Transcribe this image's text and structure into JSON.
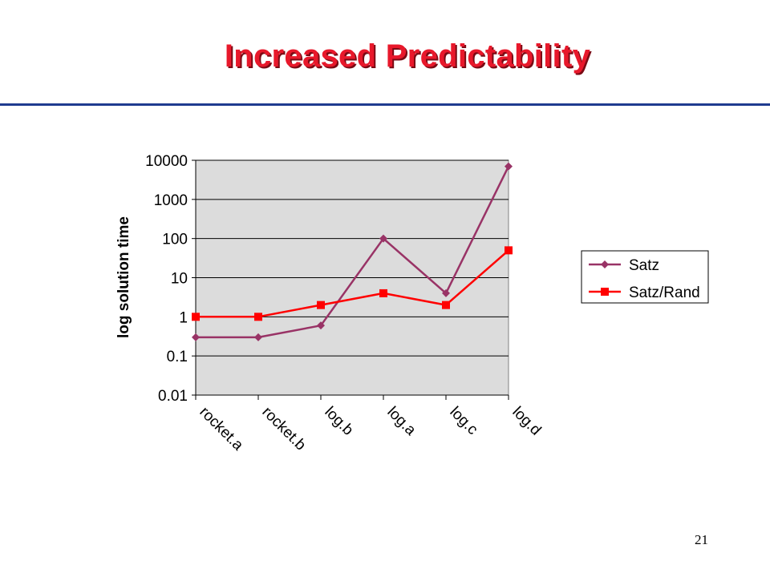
{
  "slide": {
    "title": "Increased Predictability",
    "page_number": "21"
  },
  "colors": {
    "title": "#e8182b",
    "rule": "#1f3b8f",
    "plot_background": "#dcdcdc",
    "satz": "#993366",
    "satz_rand": "#ff0000"
  },
  "chart_data": {
    "type": "line",
    "title": "",
    "xlabel": "",
    "ylabel": "log solution time",
    "y_scale": "log",
    "ylim": [
      0.01,
      10000
    ],
    "y_ticks": [
      {
        "value": 10000,
        "label": "10000"
      },
      {
        "value": 1000,
        "label": "1000"
      },
      {
        "value": 100,
        "label": "100"
      },
      {
        "value": 10,
        "label": "10"
      },
      {
        "value": 1,
        "label": "1"
      },
      {
        "value": 0.1,
        "label": "0.1"
      },
      {
        "value": 0.01,
        "label": "0.01"
      }
    ],
    "categories": [
      "rocket.a",
      "rocket.b",
      "log.b",
      "log.a",
      "log.c",
      "log.d"
    ],
    "series": [
      {
        "name": "Satz",
        "marker": "diamond",
        "color": "#993366",
        "values": [
          0.3,
          0.3,
          0.6,
          100,
          4,
          7000
        ]
      },
      {
        "name": "Satz/Rand",
        "marker": "square",
        "color": "#ff0000",
        "values": [
          1,
          1,
          2,
          4,
          2,
          50
        ]
      }
    ],
    "grid": true,
    "legend": "right"
  }
}
